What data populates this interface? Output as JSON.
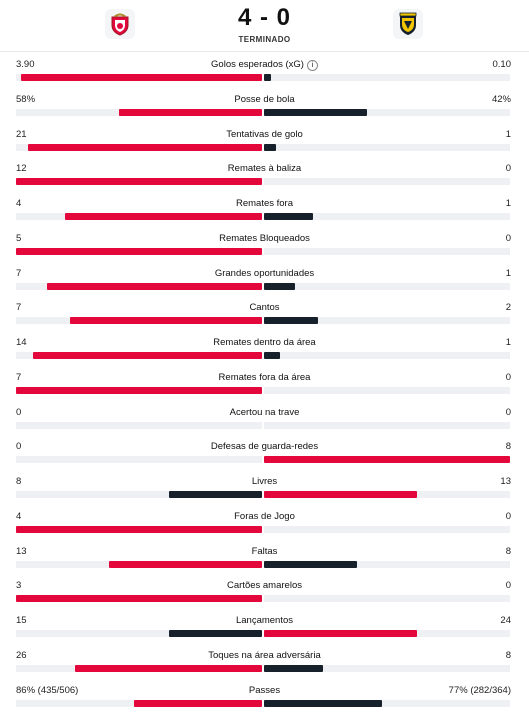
{
  "match": {
    "score": "4 - 0",
    "status": "TERMINADO",
    "home_crest_icon": "benfica-crest-icon",
    "away_crest_icon": "famalicao-crest-icon"
  },
  "colors": {
    "win": "#e3073c",
    "lose": "#16212b",
    "track": "#eef0f3"
  },
  "stats": [
    {
      "name": "Golos esperados (xG)",
      "home": "3.90",
      "away": "0.10",
      "home_share": 0.98,
      "away_share": 0.03,
      "winner": "home",
      "info": true
    },
    {
      "name": "Posse de bola",
      "home": "58%",
      "away": "42%",
      "home_share": 0.58,
      "away_share": 0.42,
      "winner": "home"
    },
    {
      "name": "Tentativas de golo",
      "home": "21",
      "away": "1",
      "home_share": 0.95,
      "away_share": 0.05,
      "winner": "home"
    },
    {
      "name": "Remates à baliza",
      "home": "12",
      "away": "0",
      "home_share": 1,
      "away_share": 0,
      "winner": "home"
    },
    {
      "name": "Remates fora",
      "home": "4",
      "away": "1",
      "home_share": 0.8,
      "away_share": 0.2,
      "winner": "home"
    },
    {
      "name": "Remates Bloqueados",
      "home": "5",
      "away": "0",
      "home_share": 1,
      "away_share": 0,
      "winner": "home"
    },
    {
      "name": "Grandes oportunidades",
      "home": "7",
      "away": "1",
      "home_share": 0.875,
      "away_share": 0.125,
      "winner": "home"
    },
    {
      "name": "Cantos",
      "home": "7",
      "away": "2",
      "home_share": 0.78,
      "away_share": 0.22,
      "winner": "home"
    },
    {
      "name": "Remates dentro da área",
      "home": "14",
      "away": "1",
      "home_share": 0.93,
      "away_share": 0.067,
      "winner": "home"
    },
    {
      "name": "Remates fora da área",
      "home": "7",
      "away": "0",
      "home_share": 1,
      "away_share": 0,
      "winner": "home"
    },
    {
      "name": "Acertou na trave",
      "home": "0",
      "away": "0",
      "home_share": 0,
      "away_share": 0,
      "winner": "none"
    },
    {
      "name": "Defesas de guarda-redes",
      "home": "0",
      "away": "8",
      "home_share": 0,
      "away_share": 1,
      "winner": "away"
    },
    {
      "name": "Livres",
      "home": "8",
      "away": "13",
      "home_share": 0.38,
      "away_share": 0.62,
      "winner": "away"
    },
    {
      "name": "Foras de Jogo",
      "home": "4",
      "away": "0",
      "home_share": 1,
      "away_share": 0,
      "winner": "home"
    },
    {
      "name": "Faltas",
      "home": "13",
      "away": "8",
      "home_share": 0.62,
      "away_share": 0.38,
      "winner": "home"
    },
    {
      "name": "Cartões amarelos",
      "home": "3",
      "away": "0",
      "home_share": 1,
      "away_share": 0,
      "winner": "home"
    },
    {
      "name": "Lançamentos",
      "home": "15",
      "away": "24",
      "home_share": 0.38,
      "away_share": 0.62,
      "winner": "away"
    },
    {
      "name": "Toques na área adversária",
      "home": "26",
      "away": "8",
      "home_share": 0.76,
      "away_share": 0.24,
      "winner": "home"
    },
    {
      "name": "Passes",
      "home": "86% (435/506)",
      "away": "77% (282/364)",
      "home_share": 0.52,
      "away_share": 0.48,
      "winner": "home"
    }
  ]
}
